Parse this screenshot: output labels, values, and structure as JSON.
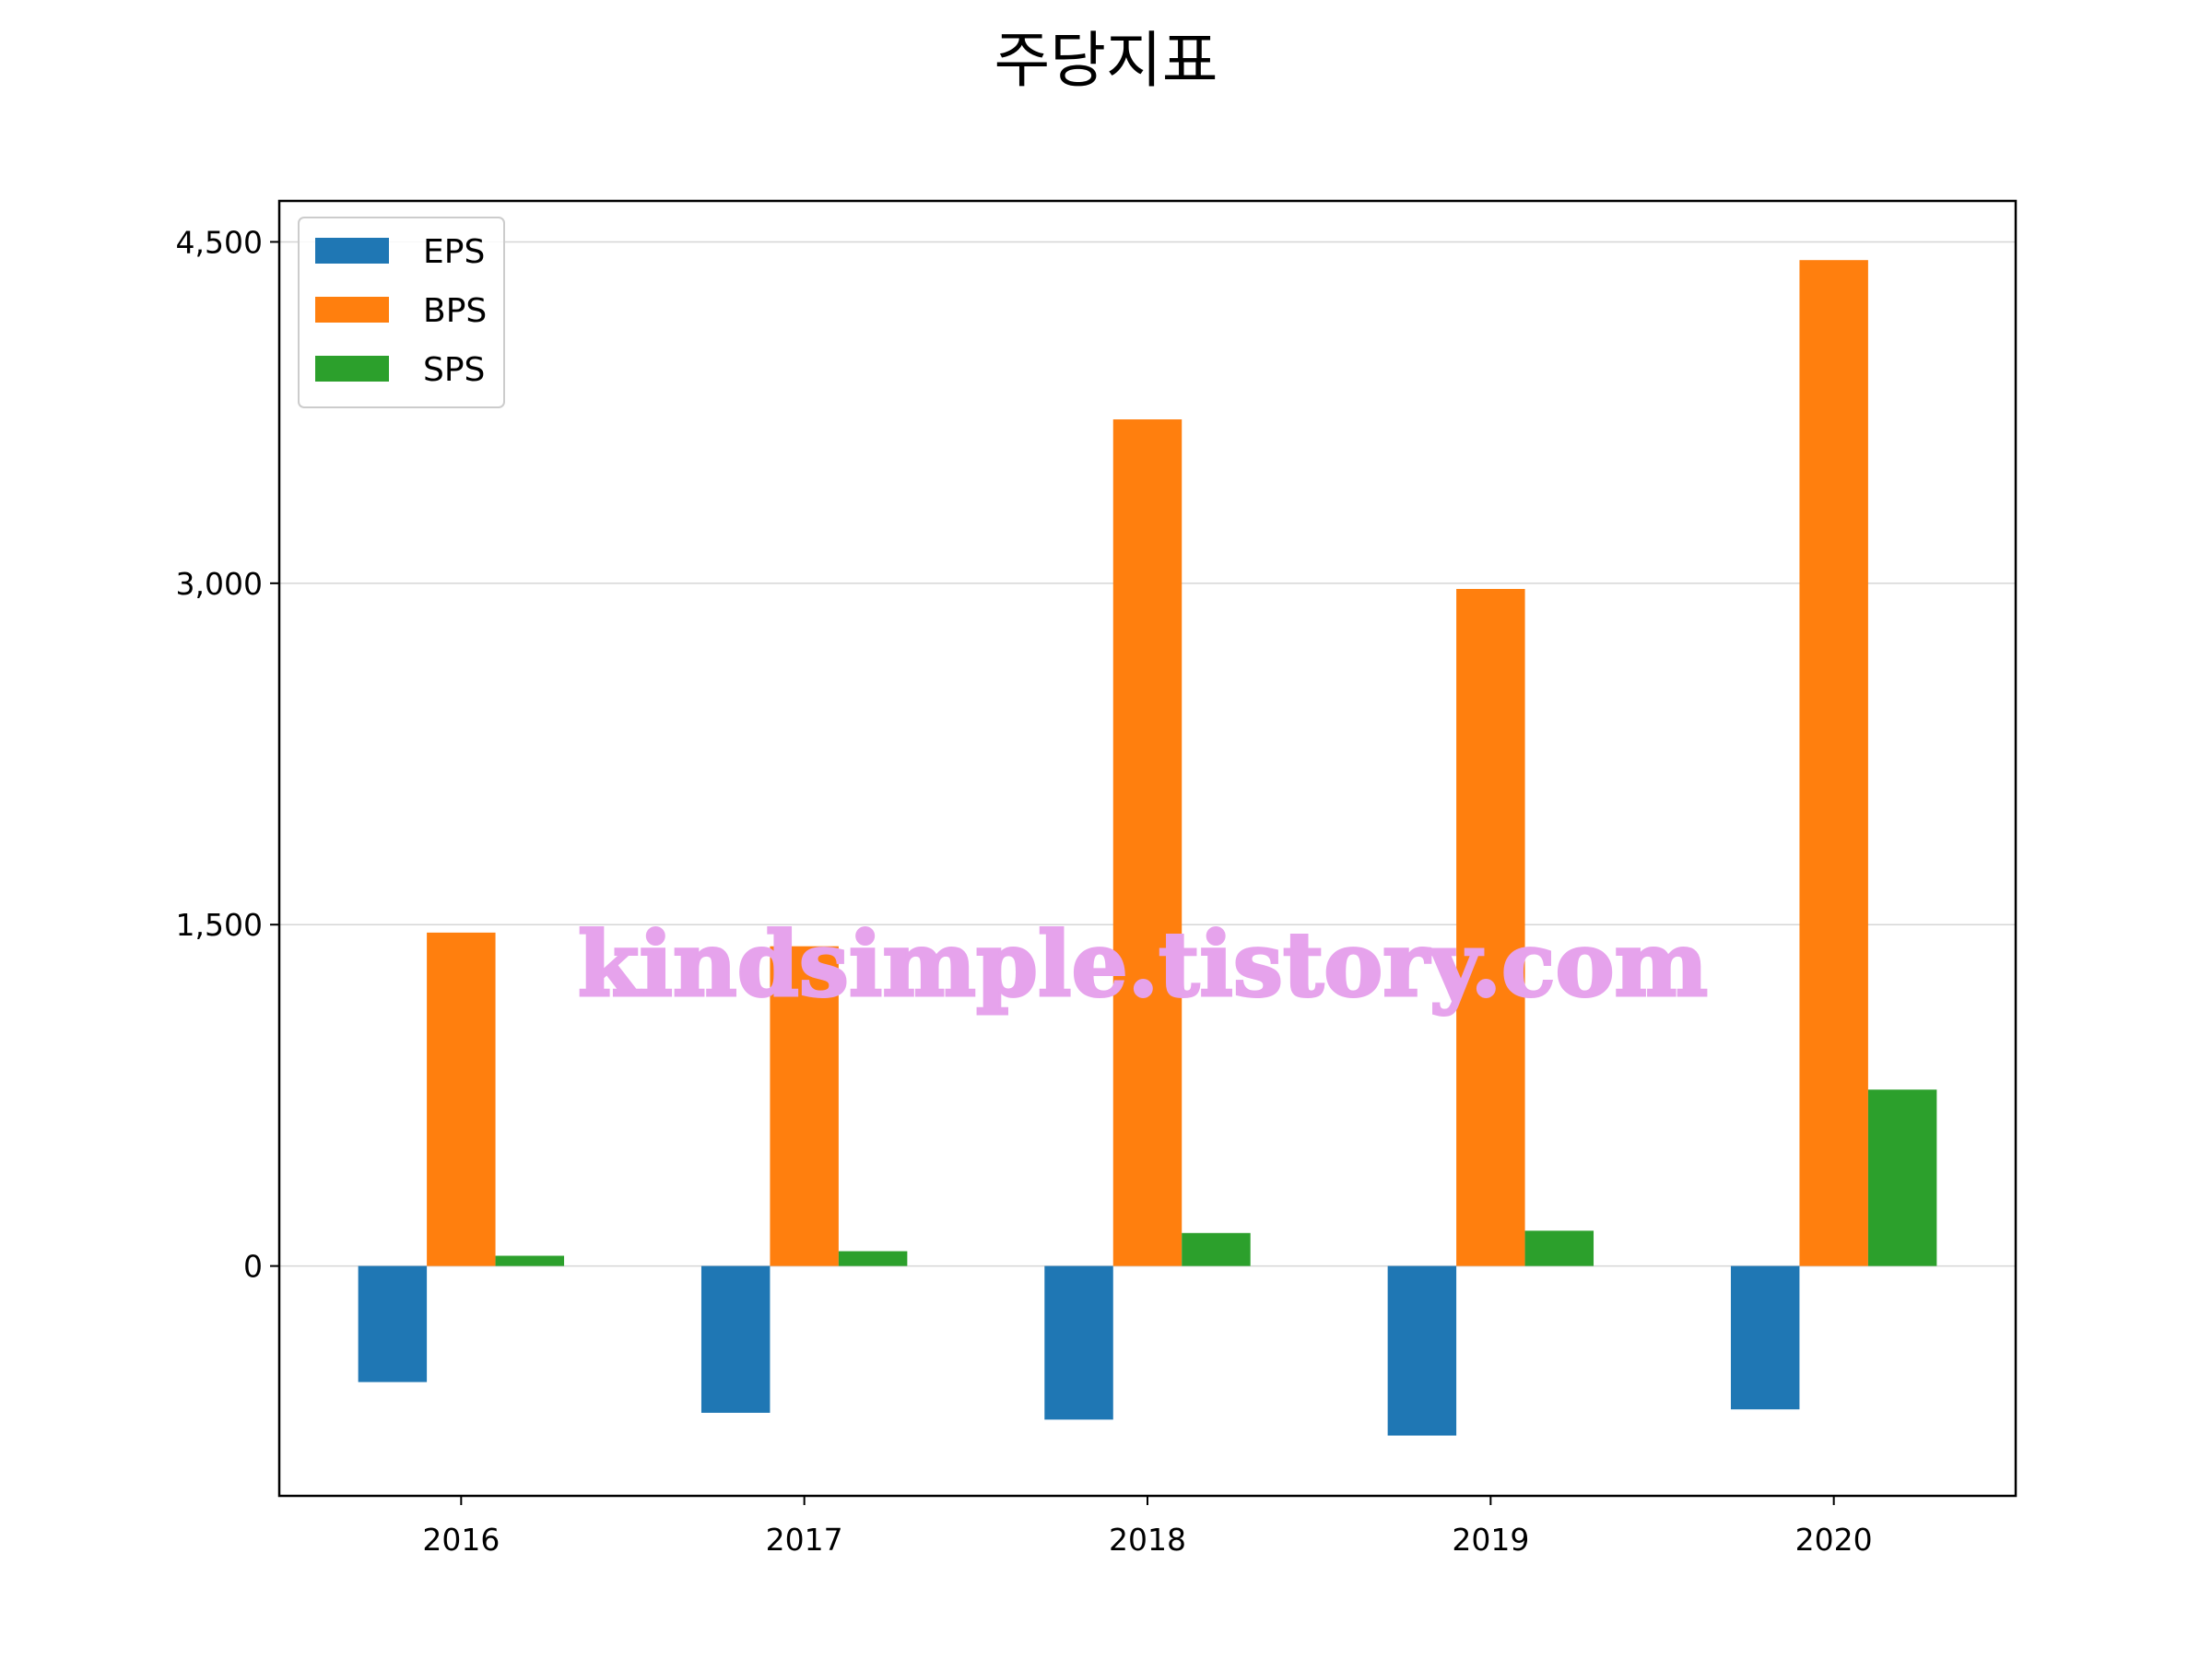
{
  "chart_data": {
    "type": "bar",
    "title": "주당지표",
    "xlabel": "",
    "ylabel": "",
    "categories": [
      "2016",
      "2017",
      "2018",
      "2019",
      "2020"
    ],
    "series": [
      {
        "name": "EPS",
        "color": "#1f77b4",
        "values": [
          -510,
          -645,
          -675,
          -745,
          -630
        ]
      },
      {
        "name": "BPS",
        "color": "#ff7f0e",
        "values": [
          1465,
          1405,
          3720,
          2975,
          4420
        ]
      },
      {
        "name": "SPS",
        "color": "#2ca02c",
        "values": [
          45,
          65,
          145,
          155,
          775
        ]
      }
    ],
    "ylim": [
      -1010,
      4680
    ],
    "yticks": [
      0,
      1500,
      3000,
      4500
    ],
    "ytick_labels": [
      "0",
      "1,500",
      "3,000",
      "4,500"
    ],
    "grid": "horizontal",
    "legend_position": "top-left"
  },
  "watermark": "kindsimple.tistory.com"
}
